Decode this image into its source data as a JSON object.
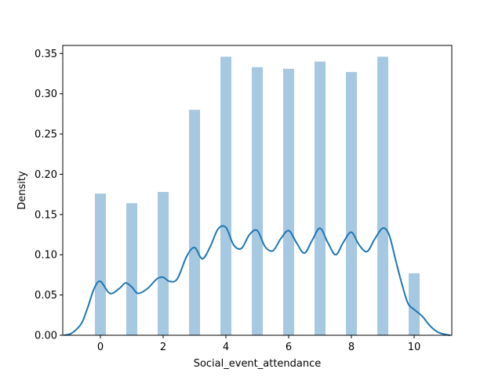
{
  "chart_data": {
    "type": "bar",
    "xlabel": "Social_event_attendance",
    "ylabel": "Density",
    "xlim": [
      -1.2,
      11.2
    ],
    "ylim": [
      0,
      0.36
    ],
    "x_ticks": [
      0,
      2,
      4,
      6,
      8,
      10
    ],
    "y_ticks": [
      0.0,
      0.05,
      0.1,
      0.15,
      0.2,
      0.25,
      0.3,
      0.35
    ],
    "grid": false,
    "bar_color": "#a6c8e0",
    "kde_color": "#1f77b4",
    "histogram": {
      "bar_width": 0.35,
      "x": [
        0,
        1,
        2,
        3,
        4,
        5,
        6,
        7,
        8,
        9,
        10
      ],
      "values": [
        0.176,
        0.164,
        0.178,
        0.28,
        0.346,
        0.333,
        0.331,
        0.34,
        0.327,
        0.346,
        0.077
      ]
    },
    "kde": {
      "x": [
        -1.15,
        -0.9,
        -0.6,
        -0.4,
        -0.2,
        0,
        0.3,
        0.6,
        0.8,
        1.0,
        1.2,
        1.5,
        1.8,
        2.0,
        2.2,
        2.45,
        2.75,
        3.0,
        3.25,
        3.5,
        3.75,
        4.0,
        4.25,
        4.5,
        4.75,
        5.0,
        5.25,
        5.5,
        5.75,
        6.0,
        6.25,
        6.5,
        6.75,
        7.0,
        7.25,
        7.5,
        7.75,
        8.0,
        8.25,
        8.5,
        8.75,
        9.0,
        9.2,
        9.4,
        9.6,
        9.8,
        10.0,
        10.25,
        10.5,
        10.75,
        11.0,
        11.15
      ],
      "y": [
        0.0,
        0.003,
        0.015,
        0.035,
        0.058,
        0.067,
        0.052,
        0.058,
        0.065,
        0.06,
        0.052,
        0.058,
        0.07,
        0.072,
        0.067,
        0.07,
        0.098,
        0.109,
        0.095,
        0.11,
        0.132,
        0.134,
        0.112,
        0.108,
        0.125,
        0.13,
        0.11,
        0.105,
        0.12,
        0.13,
        0.115,
        0.102,
        0.118,
        0.133,
        0.115,
        0.1,
        0.116,
        0.128,
        0.112,
        0.104,
        0.12,
        0.133,
        0.125,
        0.095,
        0.065,
        0.04,
        0.032,
        0.024,
        0.012,
        0.004,
        0.001,
        0.0
      ]
    }
  }
}
